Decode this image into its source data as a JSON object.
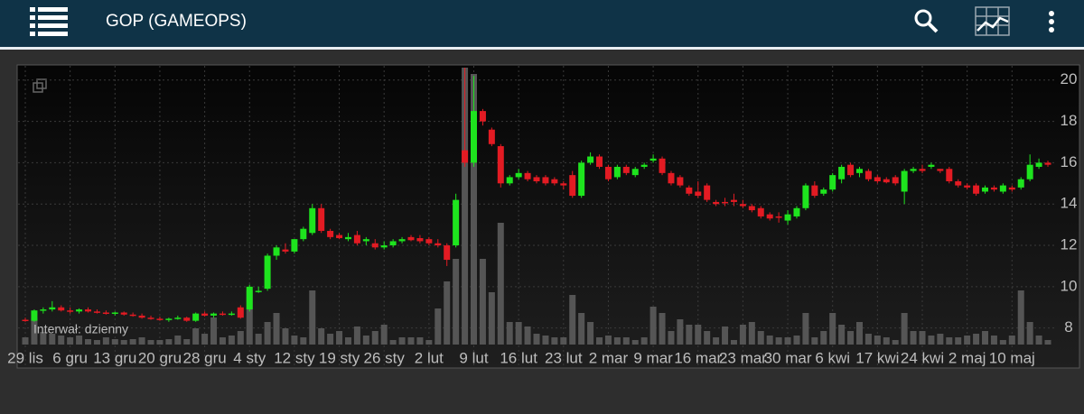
{
  "header": {
    "title": "GOP (GAMEOPS)"
  },
  "chart_data": {
    "type": "candlestick",
    "annotation": "Interwał: dzienny",
    "categories": [
      "29 lis",
      null,
      null,
      null,
      null,
      "6 gru",
      null,
      null,
      null,
      null,
      "13 gru",
      null,
      null,
      null,
      null,
      "20 gru",
      null,
      null,
      null,
      null,
      "28 gru",
      null,
      null,
      null,
      null,
      "4 sty",
      null,
      null,
      null,
      null,
      "12 sty",
      null,
      null,
      null,
      null,
      "19 sty",
      null,
      null,
      null,
      null,
      "26 sty",
      null,
      null,
      null,
      null,
      "2 lut",
      null,
      null,
      null,
      null,
      "9 lut",
      null,
      null,
      null,
      null,
      "16 lut",
      null,
      null,
      null,
      null,
      "23 lut",
      null,
      null,
      null,
      null,
      "2 mar",
      null,
      null,
      null,
      null,
      "9 mar",
      null,
      null,
      null,
      null,
      "16 mar",
      null,
      null,
      null,
      null,
      "23 mar",
      null,
      null,
      null,
      null,
      "30 mar",
      null,
      null,
      null,
      null,
      "6 kwi",
      null,
      null,
      null,
      null,
      "17 kwi",
      null,
      null,
      null,
      null,
      "24 kwi",
      null,
      null,
      null,
      null,
      "2 maj",
      null,
      null,
      null,
      null,
      "10 maj",
      null,
      null,
      null,
      null
    ],
    "open": [
      8.4,
      8.35,
      8.85,
      8.9,
      9.0,
      8.85,
      8.8,
      8.9,
      8.8,
      8.75,
      8.7,
      8.75,
      8.65,
      8.6,
      8.5,
      8.45,
      8.4,
      8.45,
      8.5,
      8.35,
      8.7,
      8.6,
      8.7,
      8.65,
      9.0,
      8.9,
      9.8,
      9.9,
      11.5,
      11.8,
      11.7,
      12.3,
      12.6,
      13.8,
      12.7,
      12.5,
      12.3,
      12.5,
      12.2,
      12.1,
      11.9,
      12.0,
      12.2,
      12.4,
      12.35,
      12.3,
      12.1,
      12.0,
      12.0,
      16.6,
      16.0,
      18.5,
      17.6,
      16.8,
      15.0,
      15.3,
      15.5,
      15.3,
      15.3,
      15.2,
      15.0,
      15.4,
      14.4,
      16.0,
      16.3,
      15.8,
      15.3,
      15.8,
      15.4,
      15.8,
      16.1,
      16.2,
      15.5,
      15.3,
      14.8,
      14.6,
      14.9,
      14.1,
      14.1,
      14.2,
      14.0,
      13.9,
      13.8,
      13.5,
      13.4,
      13.2,
      13.4,
      13.8,
      14.9,
      14.5,
      14.7,
      15.2,
      15.9,
      15.5,
      15.6,
      15.3,
      15.2,
      15.3,
      14.6,
      15.6,
      15.7,
      15.8,
      15.7,
      15.7,
      15.1,
      14.9,
      14.9,
      14.6,
      14.8,
      14.6,
      14.8,
      14.8,
      15.2,
      15.8,
      16.0
    ],
    "high": [
      8.5,
      8.9,
      9.0,
      9.3,
      9.1,
      9.0,
      8.95,
      9.0,
      8.9,
      8.85,
      8.8,
      8.8,
      8.75,
      8.7,
      8.6,
      8.55,
      8.5,
      8.6,
      8.55,
      8.75,
      8.8,
      8.75,
      8.8,
      8.8,
      9.1,
      10.1,
      10.0,
      11.6,
      12.0,
      12.1,
      12.3,
      12.9,
      14.0,
      14.0,
      12.8,
      12.6,
      12.6,
      12.7,
      12.4,
      12.3,
      12.2,
      12.3,
      12.4,
      12.5,
      12.5,
      12.4,
      12.3,
      12.1,
      14.5,
      20.6,
      20.2,
      18.6,
      17.7,
      16.9,
      15.4,
      15.7,
      15.6,
      15.4,
      15.4,
      15.3,
      15.1,
      15.6,
      16.1,
      16.5,
      16.4,
      15.9,
      15.9,
      15.9,
      15.8,
      16.0,
      16.4,
      16.3,
      15.6,
      15.4,
      14.9,
      15.1,
      15.0,
      14.2,
      14.3,
      14.5,
      14.2,
      14.0,
      13.9,
      13.6,
      13.6,
      13.7,
      13.9,
      15.0,
      15.1,
      14.8,
      15.5,
      15.9,
      16.0,
      15.8,
      15.7,
      15.4,
      15.3,
      15.4,
      15.7,
      15.8,
      15.9,
      16.0,
      15.7,
      15.8,
      15.2,
      15.0,
      15.0,
      14.9,
      14.9,
      15.0,
      14.9,
      15.3,
      16.4,
      16.2,
      16.1
    ],
    "low": [
      8.3,
      8.3,
      8.7,
      8.8,
      8.8,
      8.7,
      8.7,
      8.75,
      8.7,
      8.65,
      8.6,
      8.6,
      8.55,
      8.45,
      8.4,
      8.35,
      8.3,
      8.4,
      8.3,
      8.3,
      8.55,
      8.5,
      8.6,
      8.6,
      8.45,
      8.8,
      9.7,
      9.8,
      11.3,
      11.6,
      11.6,
      12.2,
      12.5,
      12.6,
      12.3,
      12.3,
      12.2,
      12.0,
      12.0,
      11.8,
      11.8,
      11.9,
      12.1,
      12.2,
      12.1,
      12.0,
      11.9,
      11.0,
      11.9,
      15.8,
      15.8,
      17.8,
      16.8,
      14.8,
      14.9,
      15.2,
      15.1,
      15.0,
      14.9,
      14.9,
      14.7,
      14.3,
      14.3,
      15.9,
      15.7,
      15.1,
      15.2,
      15.4,
      15.3,
      15.7,
      16.0,
      15.4,
      14.9,
      14.8,
      14.4,
      14.3,
      14.1,
      13.9,
      13.9,
      13.9,
      13.8,
      13.6,
      13.3,
      13.2,
      13.1,
      13.0,
      13.3,
      13.7,
      14.3,
      14.4,
      14.6,
      15.0,
      15.3,
      15.3,
      15.1,
      15.0,
      15.0,
      14.9,
      14.0,
      15.5,
      15.5,
      15.7,
      15.5,
      15.0,
      14.8,
      14.7,
      14.4,
      14.5,
      14.6,
      14.5,
      14.6,
      14.7,
      15.1,
      15.7,
      15.8
    ],
    "close": [
      8.35,
      8.85,
      8.9,
      9.0,
      8.85,
      8.8,
      8.9,
      8.8,
      8.75,
      8.7,
      8.75,
      8.65,
      8.6,
      8.5,
      8.45,
      8.4,
      8.45,
      8.5,
      8.35,
      8.7,
      8.6,
      8.7,
      8.65,
      8.7,
      8.5,
      10.0,
      9.8,
      11.5,
      11.9,
      11.7,
      12.3,
      12.8,
      13.8,
      12.7,
      12.4,
      12.35,
      12.4,
      12.1,
      12.3,
      11.9,
      12.0,
      12.2,
      12.3,
      12.25,
      12.2,
      12.1,
      12.0,
      11.3,
      14.2,
      16.0,
      18.5,
      18.0,
      16.9,
      15.0,
      15.3,
      15.5,
      15.2,
      15.1,
      15.0,
      15.0,
      14.9,
      14.4,
      16.0,
      16.3,
      15.8,
      15.2,
      15.8,
      15.5,
      15.7,
      15.9,
      16.2,
      15.5,
      15.0,
      14.9,
      14.5,
      14.4,
      14.2,
      14.0,
      14.05,
      14.1,
      13.9,
      13.7,
      13.4,
      13.3,
      13.35,
      13.5,
      13.8,
      14.9,
      14.4,
      14.7,
      15.4,
      15.8,
      15.4,
      15.7,
      15.2,
      15.1,
      15.05,
      15.0,
      15.6,
      15.7,
      15.6,
      15.9,
      15.6,
      15.1,
      14.9,
      14.8,
      14.5,
      14.8,
      14.7,
      14.9,
      14.7,
      15.2,
      15.9,
      16.0,
      15.9
    ],
    "volume": [
      8,
      30,
      14,
      12,
      10,
      8,
      10,
      6,
      5,
      8,
      6,
      5,
      6,
      8,
      5,
      5,
      6,
      10,
      6,
      18,
      12,
      30,
      8,
      10,
      15,
      60,
      12,
      25,
      35,
      18,
      10,
      8,
      60,
      18,
      12,
      15,
      8,
      20,
      10,
      15,
      22,
      5,
      8,
      8,
      8,
      5,
      40,
      70,
      95,
      307,
      300,
      95,
      58,
      135,
      25,
      25,
      20,
      12,
      10,
      8,
      8,
      55,
      35,
      25,
      8,
      10,
      8,
      8,
      5,
      8,
      42,
      35,
      15,
      28,
      22,
      22,
      15,
      8,
      20,
      5,
      22,
      25,
      15,
      10,
      8,
      8,
      10,
      35,
      8,
      15,
      35,
      22,
      15,
      25,
      12,
      10,
      8,
      5,
      35,
      15,
      15,
      10,
      12,
      8,
      8,
      10,
      12,
      15,
      10,
      5,
      10,
      60,
      25,
      10,
      5
    ],
    "up_color": "#1ee41e",
    "down_color": "#e31b23",
    "volume_color": "#555555",
    "ylim": [
      7.2,
      20.6
    ],
    "yticks": [
      8,
      10,
      12,
      14,
      16,
      18,
      20
    ],
    "grid": true
  }
}
